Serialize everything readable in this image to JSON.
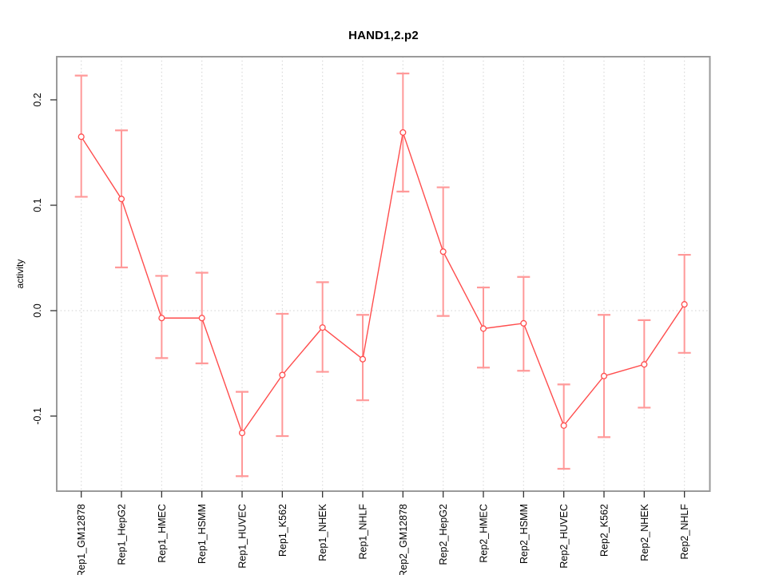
{
  "chart_data": {
    "type": "line",
    "title": "HAND1,2.p2",
    "ylabel": "activity",
    "xlabel": "",
    "categories": [
      "Rep1_GM12878",
      "Rep1_HepG2",
      "Rep1_HMEC",
      "Rep1_HSMM",
      "Rep1_HUVEC",
      "Rep1_K562",
      "Rep1_NHEK",
      "Rep1_NHLF",
      "Rep2_GM12878",
      "Rep2_HepG2",
      "Rep2_HMEC",
      "Rep2_HSMM",
      "Rep2_HUVEC",
      "Rep2_K562",
      "Rep2_NHEK",
      "Rep2_NHLF"
    ],
    "series": [
      {
        "name": "activity",
        "values": [
          0.165,
          0.106,
          -0.007,
          -0.007,
          -0.116,
          -0.061,
          -0.016,
          -0.046,
          0.169,
          0.056,
          -0.017,
          -0.012,
          -0.109,
          -0.062,
          -0.051,
          0.006
        ],
        "ci_low": [
          0.108,
          0.041,
          -0.045,
          -0.05,
          -0.157,
          -0.119,
          -0.058,
          -0.085,
          0.113,
          -0.005,
          -0.054,
          -0.057,
          -0.15,
          -0.12,
          -0.092,
          -0.04
        ],
        "ci_high": [
          0.223,
          0.171,
          0.033,
          0.036,
          -0.077,
          -0.003,
          0.027,
          -0.004,
          0.225,
          0.117,
          0.022,
          0.032,
          -0.07,
          -0.004,
          -0.009,
          0.053
        ]
      }
    ],
    "y_ticks": [
      "0.2",
      "0.1",
      "0.0",
      "-0.1"
    ],
    "y_tick_values": [
      0.2,
      0.1,
      0.0,
      -0.1
    ],
    "ylim": [
      -0.171,
      0.241
    ],
    "grid": "vertical-dotted-per-category, dotted-zero-line",
    "legend_position": "none",
    "marker": "open-circle",
    "colors": {
      "line": "#ff4d4d",
      "marker_stroke": "#ff4d4d",
      "error_bar": "#ff9999",
      "gridline": "#d9d9d9",
      "frame": "#9a9a9a",
      "tick": "#333333",
      "text": "#000000",
      "background": "#ffffff"
    }
  }
}
